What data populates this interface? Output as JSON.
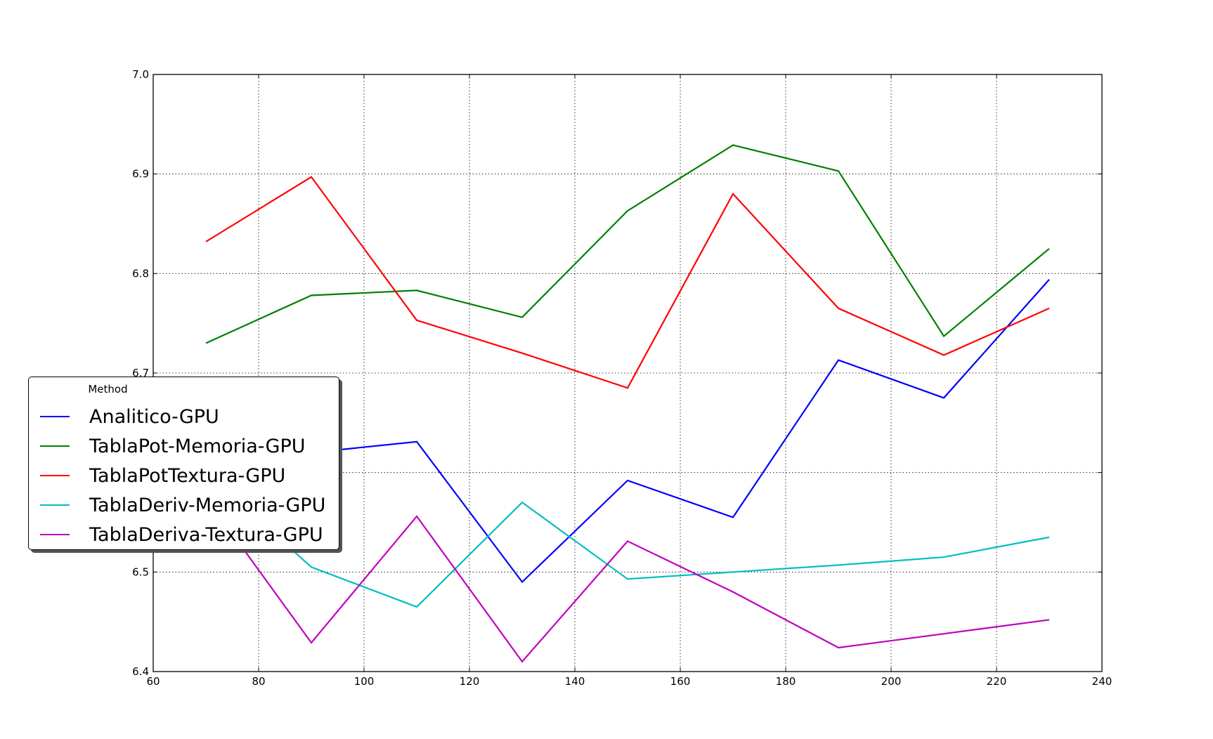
{
  "chart_data": {
    "type": "line",
    "title": "",
    "xlabel": "",
    "ylabel": "",
    "xlim": [
      60,
      240
    ],
    "ylim": [
      6.4,
      7.0
    ],
    "xticks": [
      "60",
      "80",
      "100",
      "120",
      "140",
      "160",
      "180",
      "200",
      "220",
      "240"
    ],
    "yticks": [
      "6.4",
      "6.5",
      "6.6",
      "6.7",
      "6.8",
      "6.9",
      "7.0"
    ],
    "grid": true,
    "legend": {
      "title": "Method",
      "placement": "center-left"
    },
    "x": [
      70,
      90,
      110,
      130,
      150,
      170,
      190,
      210,
      230
    ],
    "series": [
      {
        "name": "Analitico-GPU",
        "color": "#0000ff",
        "values": [
          6.665,
          6.62,
          6.631,
          6.49,
          6.592,
          6.555,
          6.713,
          6.675,
          6.794
        ]
      },
      {
        "name": "TablaPot-Memoria-GPU",
        "color": "#008000",
        "values": [
          6.73,
          6.778,
          6.783,
          6.756,
          6.863,
          6.929,
          6.903,
          6.737,
          6.825
        ]
      },
      {
        "name": "TablaPotTextura-GPU",
        "color": "#ff0000",
        "values": [
          6.832,
          6.897,
          6.753,
          6.72,
          6.685,
          6.88,
          6.765,
          6.718,
          6.765
        ]
      },
      {
        "name": "TablaDeriv-Memoria-GPU",
        "color": "#00bfbf",
        "values": [
          6.6,
          6.505,
          6.465,
          6.57,
          6.493,
          6.5,
          6.507,
          6.515,
          6.535
        ]
      },
      {
        "name": "TablaDeriva-Textura-GPU",
        "color": "#bf00bf",
        "values": [
          6.575,
          6.429,
          6.556,
          6.41,
          6.531,
          6.48,
          6.424,
          6.438,
          6.452
        ]
      }
    ]
  }
}
